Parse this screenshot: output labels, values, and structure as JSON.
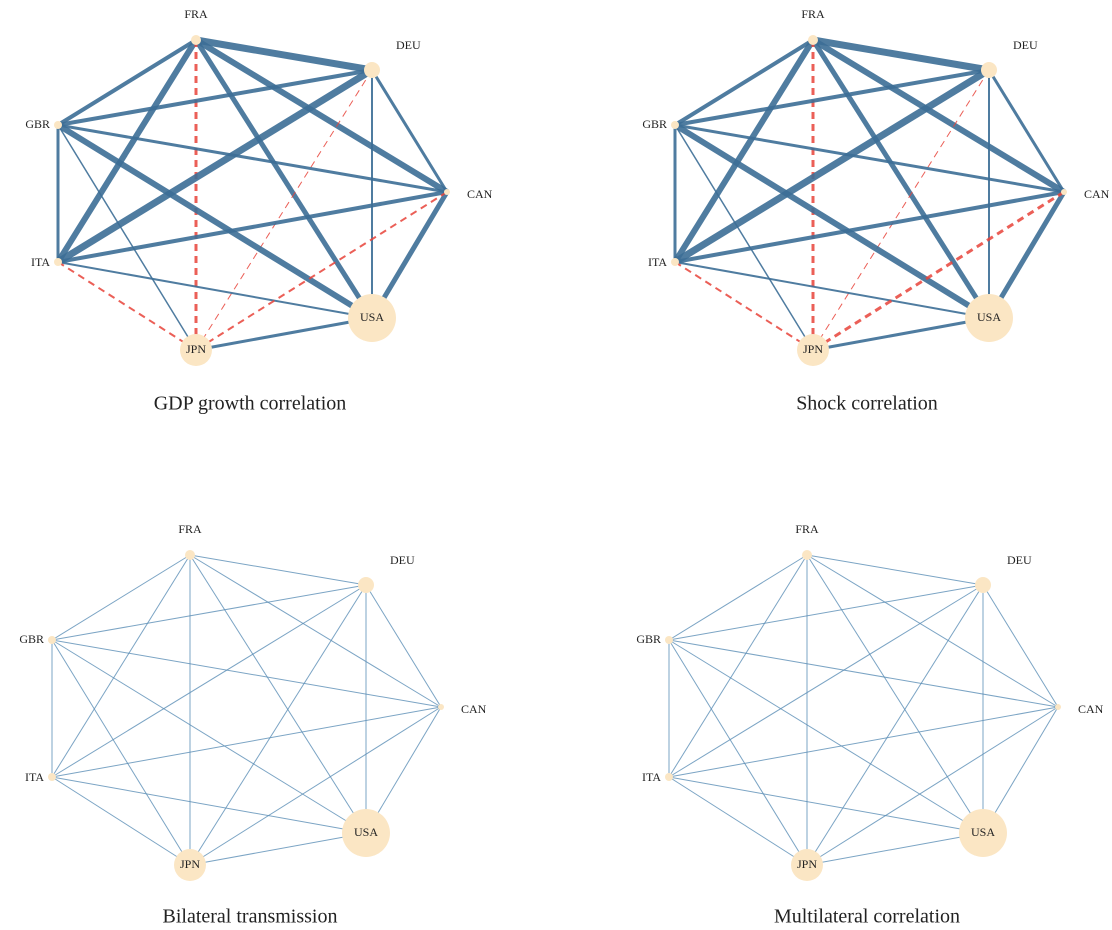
{
  "panels": [
    {
      "title": "GDP growth correlation",
      "nodes": [
        "FRA",
        "DEU",
        "CAN",
        "USA",
        "JPN",
        "ITA",
        "GBR"
      ]
    },
    {
      "title": "Shock correlation",
      "nodes": [
        "FRA",
        "DEU",
        "CAN",
        "USA",
        "JPN",
        "ITA",
        "GBR"
      ]
    },
    {
      "title": "Bilateral transmission",
      "nodes": [
        "FRA",
        "DEU",
        "CAN",
        "USA",
        "JPN",
        "ITA",
        "GBR"
      ]
    },
    {
      "title": "Multilateral correlation",
      "nodes": [
        "FRA",
        "DEU",
        "CAN",
        "USA",
        "JPN",
        "ITA",
        "GBR"
      ]
    }
  ]
}
